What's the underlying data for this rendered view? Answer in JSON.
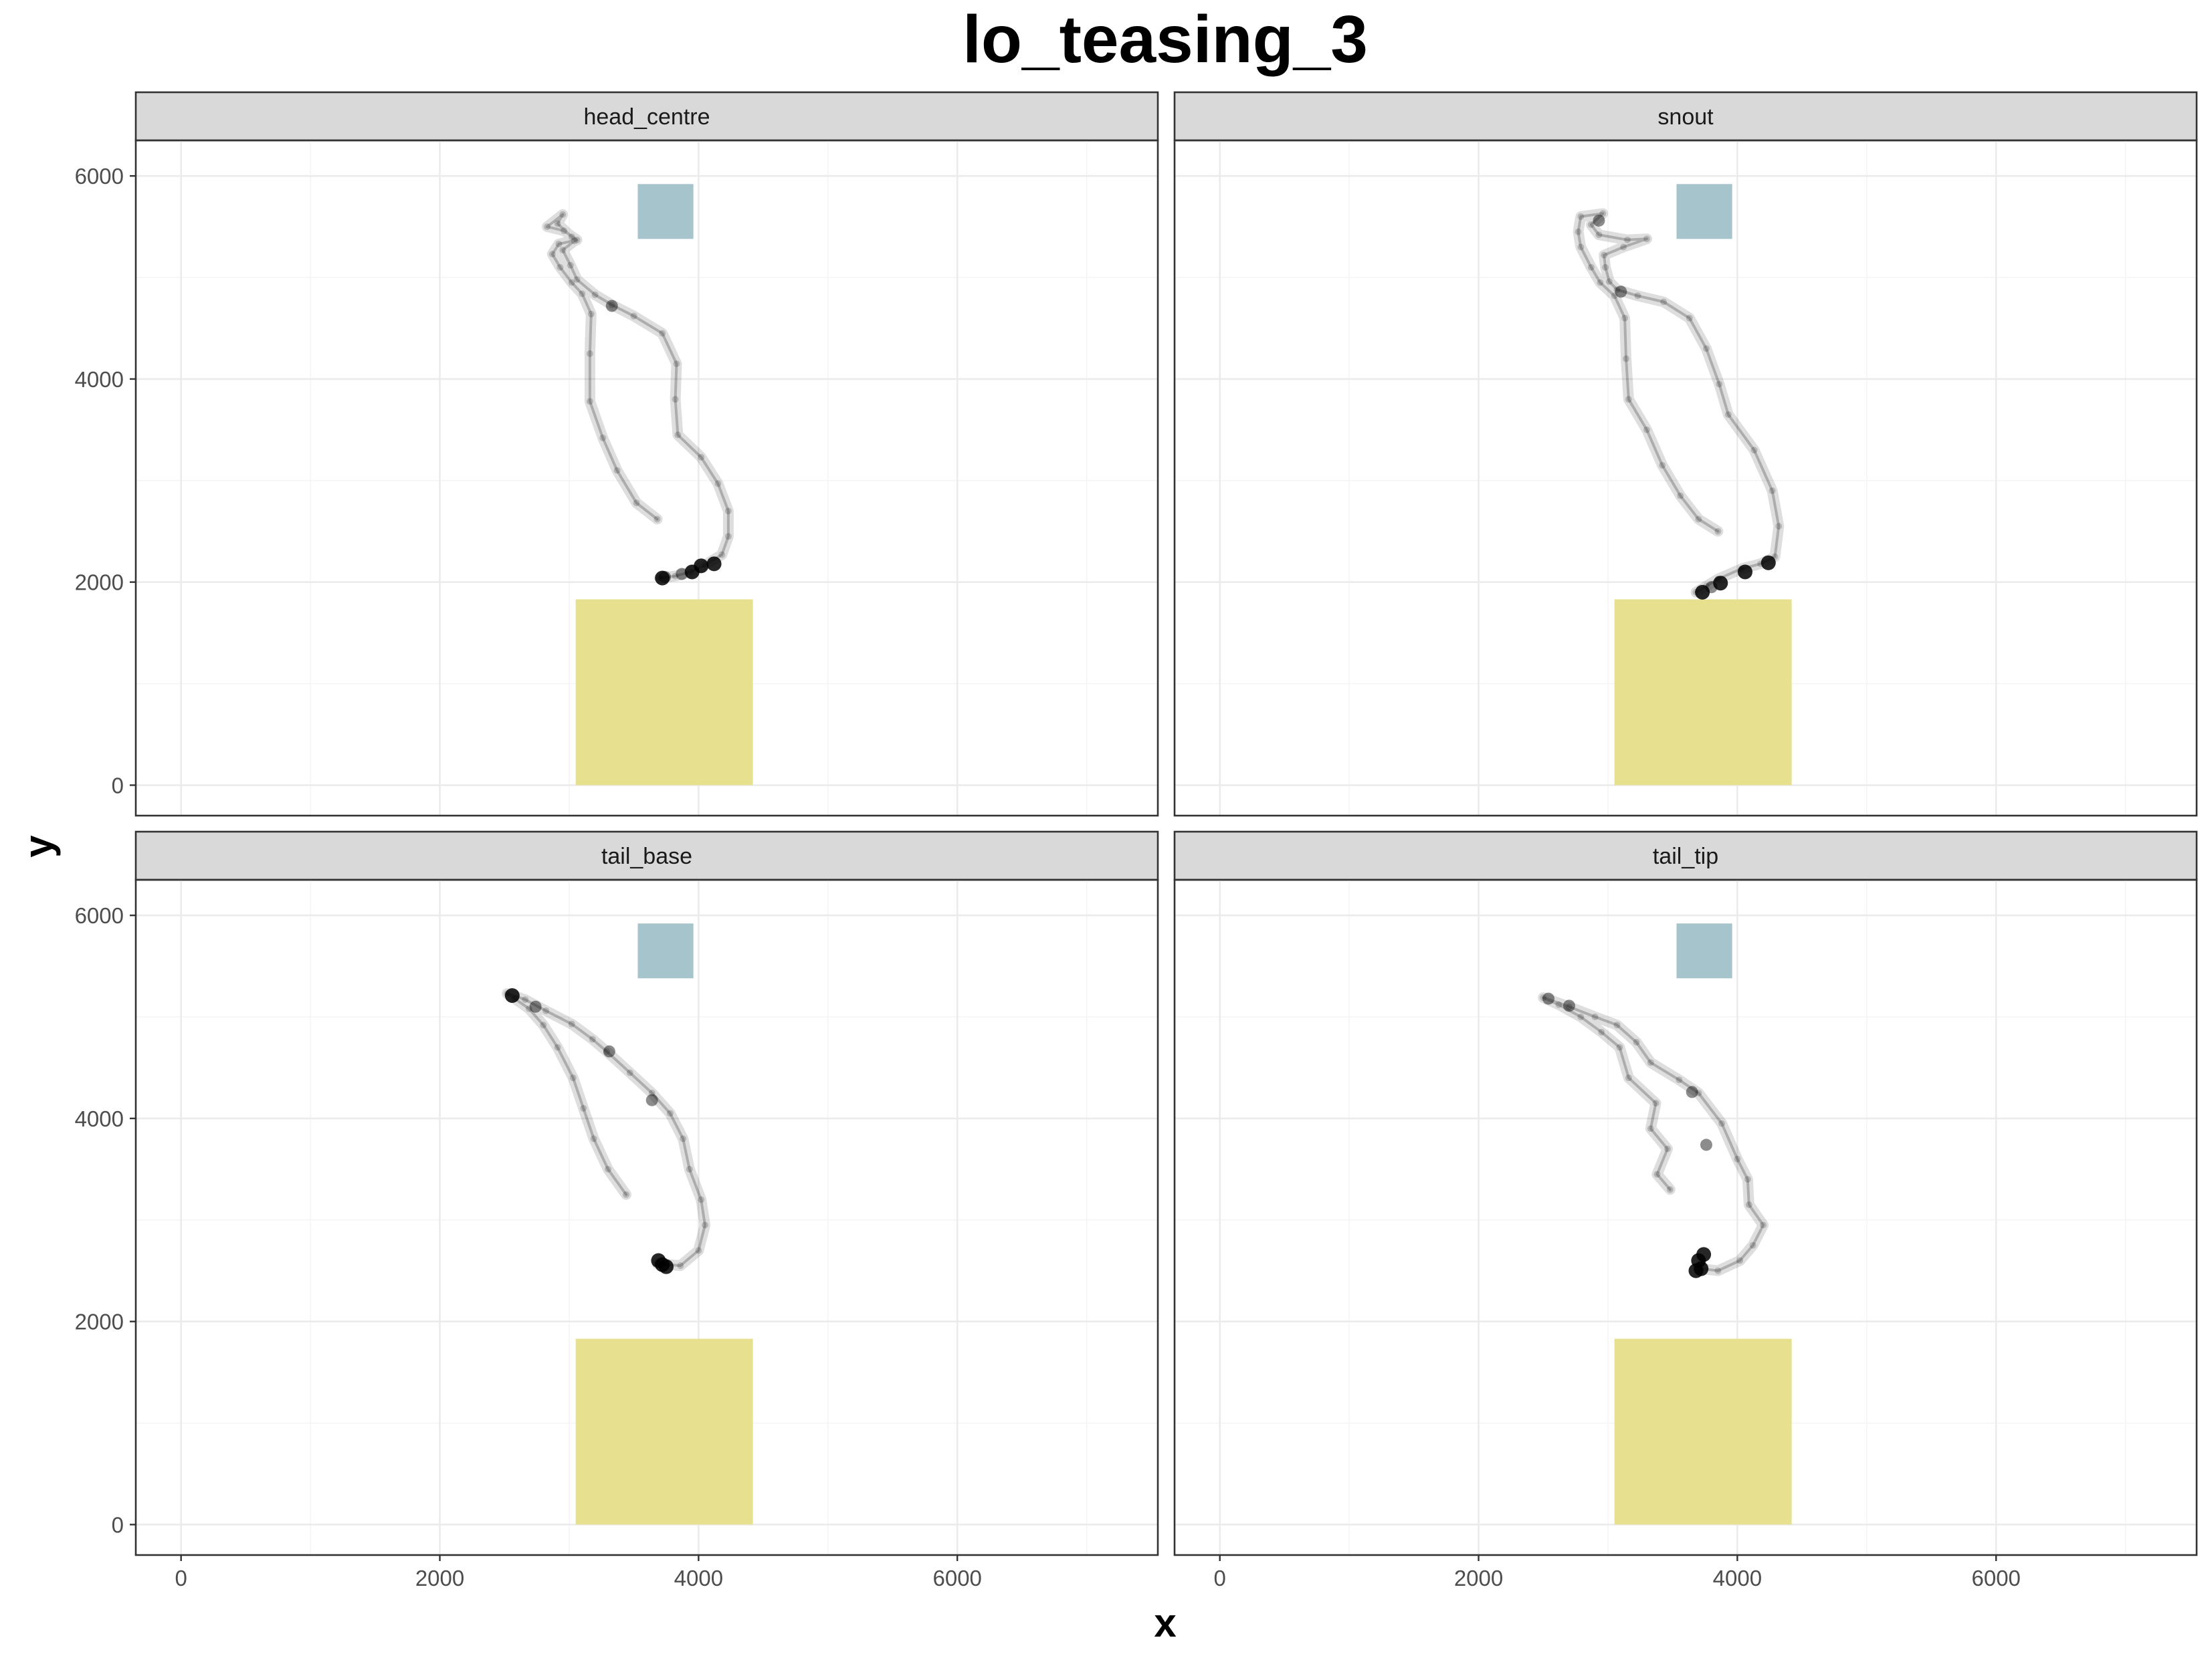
{
  "title": "lo_teasing_3",
  "xlabel": "x",
  "ylabel": "y",
  "colors": {
    "zone_top": "#a5c4cb",
    "zone_bottom": "#e7e18f",
    "track": "#000000",
    "strip": "#d9d9d9"
  },
  "chart_data": {
    "type": "scatter",
    "facet_layout": "2x2",
    "xlim": [
      -350,
      7550
    ],
    "ylim": [
      -300,
      6350
    ],
    "x_ticks": [
      0,
      2000,
      4000,
      6000
    ],
    "y_ticks": [
      0,
      2000,
      4000,
      6000
    ],
    "x_tick_labels": [
      "0",
      "2000",
      "4000",
      "6000"
    ],
    "y_tick_labels": [
      "0",
      "2000",
      "4000",
      "6000"
    ],
    "grid": true,
    "zones": [
      {
        "name": "top-zone",
        "x": [
          3530,
          3960
        ],
        "y": [
          5380,
          5920
        ],
        "color": "#a5c4cb"
      },
      {
        "name": "bottom-zone",
        "x": [
          3050,
          4420
        ],
        "y": [
          0,
          1830
        ],
        "color": "#e7e18f"
      }
    ],
    "panels": [
      {
        "label": "head_centre",
        "track": [
          [
            3680,
            2620
          ],
          [
            3520,
            2780
          ],
          [
            3370,
            3100
          ],
          [
            3260,
            3420
          ],
          [
            3160,
            3780
          ],
          [
            3160,
            4250
          ],
          [
            3170,
            4640
          ],
          [
            3100,
            4840
          ],
          [
            3020,
            4950
          ],
          [
            2930,
            5100
          ],
          [
            2870,
            5230
          ],
          [
            2920,
            5330
          ],
          [
            3060,
            5370
          ],
          [
            2960,
            5460
          ],
          [
            2830,
            5500
          ],
          [
            2950,
            5620
          ],
          [
            2910,
            5530
          ],
          [
            3020,
            5400
          ],
          [
            3040,
            5360
          ],
          [
            2950,
            5270
          ],
          [
            3010,
            5120
          ],
          [
            3060,
            4980
          ],
          [
            3200,
            4830
          ],
          [
            3330,
            4730
          ],
          [
            3500,
            4620
          ],
          [
            3720,
            4450
          ],
          [
            3830,
            4150
          ],
          [
            3820,
            3800
          ],
          [
            3840,
            3450
          ],
          [
            4020,
            3230
          ],
          [
            4150,
            2970
          ],
          [
            4230,
            2700
          ],
          [
            4230,
            2450
          ],
          [
            4180,
            2270
          ],
          [
            4050,
            2170
          ],
          [
            3940,
            2100
          ],
          [
            3820,
            2060
          ],
          [
            3700,
            2040
          ]
        ],
        "dense": [
          [
            3720,
            2040
          ],
          [
            3950,
            2100
          ],
          [
            4120,
            2180
          ],
          [
            4020,
            2160
          ],
          [
            3330,
            4720
          ],
          [
            3870,
            2080
          ],
          [
            3740,
            2050
          ]
        ]
      },
      {
        "label": "snout",
        "track": [
          [
            3850,
            2500
          ],
          [
            3700,
            2620
          ],
          [
            3560,
            2850
          ],
          [
            3420,
            3150
          ],
          [
            3300,
            3500
          ],
          [
            3160,
            3800
          ],
          [
            3140,
            4200
          ],
          [
            3130,
            4600
          ],
          [
            3050,
            4820
          ],
          [
            2940,
            4950
          ],
          [
            2870,
            5100
          ],
          [
            2790,
            5300
          ],
          [
            2770,
            5450
          ],
          [
            2790,
            5600
          ],
          [
            2960,
            5630
          ],
          [
            2870,
            5520
          ],
          [
            2930,
            5420
          ],
          [
            3150,
            5370
          ],
          [
            3300,
            5380
          ],
          [
            3120,
            5300
          ],
          [
            2970,
            5220
          ],
          [
            2980,
            5100
          ],
          [
            3010,
            4960
          ],
          [
            3070,
            4880
          ],
          [
            3230,
            4820
          ],
          [
            3430,
            4760
          ],
          [
            3630,
            4600
          ],
          [
            3760,
            4300
          ],
          [
            3860,
            3950
          ],
          [
            3930,
            3650
          ],
          [
            4130,
            3300
          ],
          [
            4270,
            2900
          ],
          [
            4320,
            2550
          ],
          [
            4290,
            2250
          ],
          [
            4180,
            2180
          ],
          [
            4030,
            2130
          ],
          [
            3850,
            2030
          ],
          [
            3760,
            1960
          ],
          [
            3680,
            1900
          ]
        ],
        "dense": [
          [
            3730,
            1900
          ],
          [
            3870,
            1990
          ],
          [
            4060,
            2100
          ],
          [
            4240,
            2190
          ],
          [
            3100,
            4860
          ],
          [
            2930,
            5560
          ],
          [
            3800,
            1950
          ]
        ]
      },
      {
        "label": "tail_base",
        "track": [
          [
            3440,
            3250
          ],
          [
            3300,
            3500
          ],
          [
            3190,
            3800
          ],
          [
            3110,
            4100
          ],
          [
            3030,
            4400
          ],
          [
            2910,
            4700
          ],
          [
            2800,
            4920
          ],
          [
            2690,
            5080
          ],
          [
            2580,
            5180
          ],
          [
            2520,
            5230
          ],
          [
            2660,
            5170
          ],
          [
            2820,
            5060
          ],
          [
            3020,
            4930
          ],
          [
            3180,
            4780
          ],
          [
            3290,
            4660
          ],
          [
            3470,
            4450
          ],
          [
            3640,
            4250
          ],
          [
            3780,
            4050
          ],
          [
            3880,
            3800
          ],
          [
            3930,
            3500
          ],
          [
            4020,
            3200
          ],
          [
            4050,
            2950
          ],
          [
            4000,
            2700
          ],
          [
            3860,
            2550
          ],
          [
            3680,
            2570
          ]
        ],
        "dense": [
          [
            3720,
            2560
          ],
          [
            3690,
            2600
          ],
          [
            3750,
            2540
          ],
          [
            2560,
            5210
          ],
          [
            2740,
            5100
          ],
          [
            3640,
            4180
          ],
          [
            3310,
            4660
          ]
        ]
      },
      {
        "label": "tail_tip",
        "track": [
          [
            3480,
            3300
          ],
          [
            3380,
            3450
          ],
          [
            3460,
            3700
          ],
          [
            3330,
            3900
          ],
          [
            3370,
            4150
          ],
          [
            3160,
            4400
          ],
          [
            3090,
            4700
          ],
          [
            2950,
            4850
          ],
          [
            2790,
            5000
          ],
          [
            2620,
            5120
          ],
          [
            2500,
            5190
          ],
          [
            2700,
            5100
          ],
          [
            2900,
            5000
          ],
          [
            3070,
            4920
          ],
          [
            3220,
            4750
          ],
          [
            3330,
            4550
          ],
          [
            3550,
            4380
          ],
          [
            3700,
            4250
          ],
          [
            3880,
            3950
          ],
          [
            4000,
            3600
          ],
          [
            4080,
            3400
          ],
          [
            4090,
            3150
          ],
          [
            4200,
            2950
          ],
          [
            4120,
            2750
          ],
          [
            4020,
            2600
          ],
          [
            3850,
            2500
          ],
          [
            3720,
            2520
          ]
        ],
        "dense": [
          [
            3720,
            2520
          ],
          [
            3700,
            2600
          ],
          [
            3680,
            2500
          ],
          [
            3740,
            2660
          ],
          [
            2540,
            5180
          ],
          [
            2700,
            5110
          ],
          [
            3650,
            4260
          ],
          [
            3760,
            3740
          ]
        ]
      }
    ]
  }
}
